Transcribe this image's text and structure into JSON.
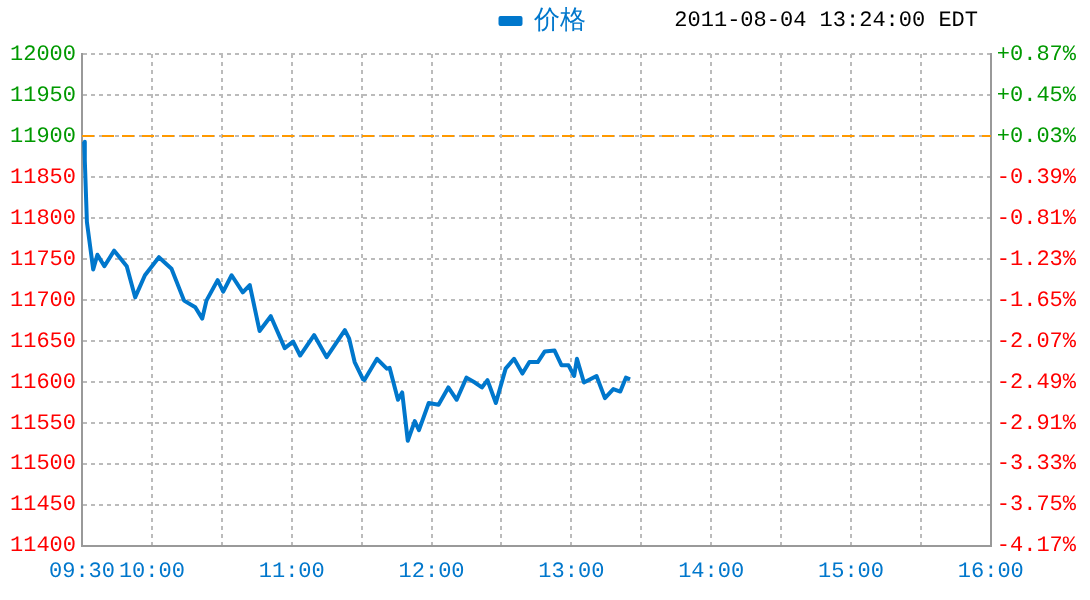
{
  "chart_data": {
    "type": "line",
    "subtitle": "2011-08-04 13:24:00 EDT",
    "series": [
      {
        "name": "价格",
        "color": "#0077cc",
        "x": [
          9.515,
          9.52,
          9.535,
          9.58,
          9.61,
          9.66,
          9.73,
          9.82,
          9.88,
          9.95,
          10.05,
          10.14,
          10.23,
          10.31,
          10.36,
          10.39,
          10.47,
          10.51,
          10.57,
          10.65,
          10.7,
          10.77,
          10.85,
          10.95,
          11.01,
          11.06,
          11.16,
          11.25,
          11.38,
          11.41,
          11.45,
          11.51,
          11.52,
          11.61,
          11.68,
          11.7,
          11.76,
          11.79,
          11.83,
          11.88,
          11.91,
          11.98,
          12.05,
          12.12,
          12.18,
          12.25,
          12.31,
          12.36,
          12.4,
          12.46,
          12.53,
          12.59,
          12.65,
          12.7,
          12.76,
          12.81,
          12.88,
          12.93,
          12.98,
          13.02,
          13.04,
          13.09,
          13.18,
          13.24,
          13.3,
          13.35,
          13.39,
          13.42
        ],
        "values": [
          11893,
          11870,
          11795,
          11737,
          11755,
          11741,
          11760,
          11741,
          11703,
          11730,
          11752,
          11738,
          11699,
          11691,
          11677,
          11699,
          11724,
          11710,
          11730,
          11709,
          11718,
          11662,
          11680,
          11641,
          11649,
          11632,
          11657,
          11630,
          11663,
          11653,
          11624,
          11603,
          11602,
          11628,
          11616,
          11617,
          11578,
          11587,
          11528,
          11552,
          11541,
          11574,
          11572,
          11593,
          11578,
          11605,
          11599,
          11593,
          11602,
          11574,
          11616,
          11628,
          11610,
          11624,
          11624,
          11637,
          11638,
          11620,
          11620,
          11607,
          11628,
          11599,
          11607,
          11580,
          11591,
          11588,
          11605,
          11603
        ]
      }
    ],
    "xlim": [
      9.5,
      16
    ],
    "xticks": [
      {
        "value": 9.5,
        "label": "09:30"
      },
      {
        "value": 10,
        "label": "10:00"
      },
      {
        "value": 10.5,
        "label": null
      },
      {
        "value": 11,
        "label": "11:00"
      },
      {
        "value": 11.5,
        "label": null
      },
      {
        "value": 12,
        "label": "12:00"
      },
      {
        "value": 12.5,
        "label": null
      },
      {
        "value": 13,
        "label": "13:00"
      },
      {
        "value": 13.5,
        "label": null
      },
      {
        "value": 14,
        "label": "14:00"
      },
      {
        "value": 14.5,
        "label": null
      },
      {
        "value": 15,
        "label": "15:00"
      },
      {
        "value": 15.5,
        "label": null
      },
      {
        "value": 16,
        "label": "16:00"
      }
    ],
    "ylim": [
      11400,
      12000
    ],
    "yticks": [
      11400,
      11450,
      11500,
      11550,
      11600,
      11650,
      11700,
      11750,
      11800,
      11850,
      11900,
      11950,
      12000
    ],
    "y2lim": [
      -4.17,
      0.87
    ],
    "y2ticks": [
      {
        "value": -4.17,
        "label": "-4.17%"
      },
      {
        "value": -3.75,
        "label": "-3.75%"
      },
      {
        "value": -3.33,
        "label": "-3.33%"
      },
      {
        "value": -2.91,
        "label": "-2.91%"
      },
      {
        "value": -2.49,
        "label": "-2.49%"
      },
      {
        "value": -2.07,
        "label": "-2.07%"
      },
      {
        "value": -1.65,
        "label": "-1.65%"
      },
      {
        "value": -1.23,
        "label": "-1.23%"
      },
      {
        "value": -0.81,
        "label": "-0.81%"
      },
      {
        "value": -0.39,
        "label": "-0.39%"
      },
      {
        "value": 0.03,
        "label": "+0.03%"
      },
      {
        "value": 0.45,
        "label": "+0.45%"
      },
      {
        "value": 0.87,
        "label": "+0.87%"
      }
    ],
    "ref_lines": [
      {
        "axis": "y",
        "value": 11900,
        "color": "#ff9900",
        "line_style": "dashed"
      }
    ],
    "grid": true,
    "legend": "top",
    "marker": "none",
    "line_style": "solid"
  }
}
